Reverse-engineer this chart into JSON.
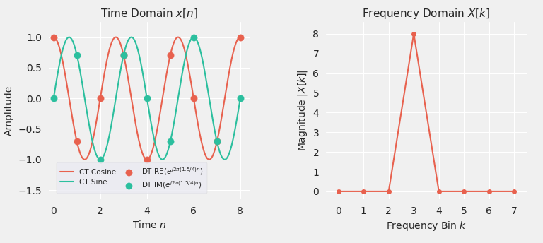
{
  "title_left": "Time Domain $x[n]$",
  "title_right": "Frequency Domain $X[k]$",
  "xlabel_left": "Time $n$",
  "ylabel_left": "Amplitude",
  "xlabel_right": "Frequency Bin $k$",
  "ylabel_right": "Magnitude $|X[k]|$",
  "freq": 1.5,
  "N_dft": 8,
  "N_signal": 8,
  "ct_t_start": 0,
  "ct_t_end": 8,
  "ylim_left": [
    -1.65,
    1.25
  ],
  "ylim_right": [
    -0.4,
    8.6
  ],
  "xlim_left": [
    -0.2,
    8.4
  ],
  "xlim_right": [
    -0.5,
    7.5
  ],
  "color_orange": "#E8614E",
  "color_teal": "#2bbf9e",
  "grid_color": "#cccccc",
  "bg_color": "#f0f0f0",
  "legend_labels": [
    "CT Cosine",
    "CT Sine",
    "DT RE($e^{j2\\pi(1.5/4)n}$)",
    "DT IM($e^{j2\\pi(1.5/4)n}$)"
  ]
}
